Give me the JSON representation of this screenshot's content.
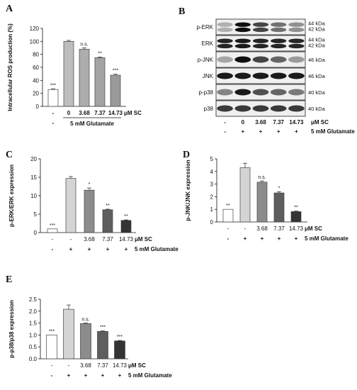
{
  "chart_data": [
    {
      "panel": "A",
      "type": "bar",
      "ylabel": "Intracellular ROS production (%)",
      "ylim": [
        0,
        120
      ],
      "yticks": [
        0,
        20,
        40,
        60,
        80,
        100,
        120
      ],
      "categories": [
        "-",
        "0",
        "3.68",
        "7.37",
        "14.73"
      ],
      "values": [
        26,
        100,
        88,
        75,
        48
      ],
      "errors": [
        1,
        1.5,
        2,
        1,
        1.5
      ],
      "annotations": [
        "***",
        "",
        "n.s.",
        "**",
        "***"
      ],
      "colors": [
        "#ffffff",
        "#bdbdbd",
        "#adadad",
        "#a3a3a3",
        "#9a9a9a"
      ],
      "dose_label": "μM SC",
      "glutamate_row": [
        "-",
        "",
        "",
        "",
        ""
      ],
      "glutamate_label": "5 mM Glutamate"
    },
    {
      "panel": "C",
      "type": "bar",
      "ylabel": "p-ERK/ERK expression",
      "ylim": [
        0,
        20
      ],
      "yticks": [
        0,
        5,
        10,
        15,
        20
      ],
      "categories": [
        "-",
        "-",
        "3.68",
        "7.37",
        "14.73"
      ],
      "values": [
        1,
        14.7,
        11.5,
        6.2,
        3.3
      ],
      "errors": [
        0,
        0.5,
        0.6,
        0.15,
        0.15
      ],
      "annotations": [
        "***",
        "",
        "*",
        "**",
        "**"
      ],
      "colors": [
        "#ffffff",
        "#d4d4d4",
        "#8c8c8c",
        "#5e5e5e",
        "#333333"
      ],
      "dose_label": "μM SC",
      "glutamate_row": [
        "-",
        "+",
        "+",
        "+",
        "+"
      ],
      "glutamate_label": "5 mM Glutamate"
    },
    {
      "panel": "D",
      "type": "bar",
      "ylabel": "p-JNK/JNK expression",
      "ylim": [
        0,
        5
      ],
      "yticks": [
        0,
        1,
        2,
        3,
        4,
        5
      ],
      "categories": [
        "-",
        "-",
        "3.68",
        "7.37",
        "14.73"
      ],
      "values": [
        1,
        4.3,
        3.15,
        2.3,
        0.82
      ],
      "errors": [
        0,
        0.35,
        0.1,
        0.1,
        0.04
      ],
      "annotations": [
        "**",
        "",
        "n.s.",
        "*",
        "**"
      ],
      "colors": [
        "#ffffff",
        "#d4d4d4",
        "#8c8c8c",
        "#5e5e5e",
        "#333333"
      ],
      "dose_label": "μM SC",
      "glutamate_row": [
        "-",
        "+",
        "+",
        "+",
        "+"
      ],
      "glutamate_label": "5 mM Glutamate"
    },
    {
      "panel": "E",
      "type": "bar",
      "ylabel": "p-p38/p38 expression",
      "ylim": [
        0,
        2.5
      ],
      "yticks": [
        0.0,
        0.5,
        1.0,
        1.5,
        2.0,
        2.5
      ],
      "categories": [
        "-",
        "-",
        "3.68",
        "7.37",
        "14.73"
      ],
      "values": [
        1.0,
        2.08,
        1.48,
        1.15,
        0.75
      ],
      "errors": [
        0,
        0.18,
        0.02,
        0.02,
        0.02
      ],
      "annotations": [
        "***",
        "",
        "n.s.",
        "***",
        "***"
      ],
      "colors": [
        "#ffffff",
        "#d4d4d4",
        "#8c8c8c",
        "#5e5e5e",
        "#333333"
      ],
      "dose_label": "μM SC",
      "glutamate_row": [
        "-",
        "+",
        "+",
        "+",
        "+"
      ],
      "glutamate_label": "5 mM Glutamate"
    }
  ],
  "panel_letters": {
    "a": "A",
    "b": "B",
    "c": "C",
    "d": "D",
    "e": "E"
  },
  "blot": {
    "rows": [
      {
        "label": "p-ERK",
        "kda": [
          "44 kDa",
          "42 kDa"
        ],
        "intensity": [
          0.25,
          1.0,
          0.75,
          0.55,
          0.4
        ]
      },
      {
        "label": "ERK",
        "kda": [
          "44 kDa",
          "42 kDa"
        ],
        "intensity": [
          0.9,
          0.95,
          0.9,
          0.9,
          0.9
        ]
      },
      {
        "label": "p-JNK",
        "kda": [
          "46 kDa"
        ],
        "intensity": [
          0.3,
          1.0,
          0.75,
          0.6,
          0.35
        ]
      },
      {
        "label": "JNK",
        "kda": [
          "46 kDa"
        ],
        "intensity": [
          0.95,
          0.95,
          0.95,
          0.95,
          0.95
        ]
      },
      {
        "label": "p-p38",
        "kda": [
          "40 kDa"
        ],
        "intensity": [
          0.45,
          0.95,
          0.7,
          0.6,
          0.5
        ]
      },
      {
        "label": "p38",
        "kda": [
          "40 kDa"
        ],
        "intensity": [
          0.8,
          0.8,
          0.8,
          0.8,
          0.8
        ]
      }
    ],
    "lane_doses": [
      "-",
      "0",
      "3.68",
      "7.37",
      "14.73"
    ],
    "dose_label": "μM SC",
    "glutamate_row": [
      "-",
      "+",
      "+",
      "+",
      "+"
    ],
    "glutamate_label": "5 mM Glutamate"
  }
}
